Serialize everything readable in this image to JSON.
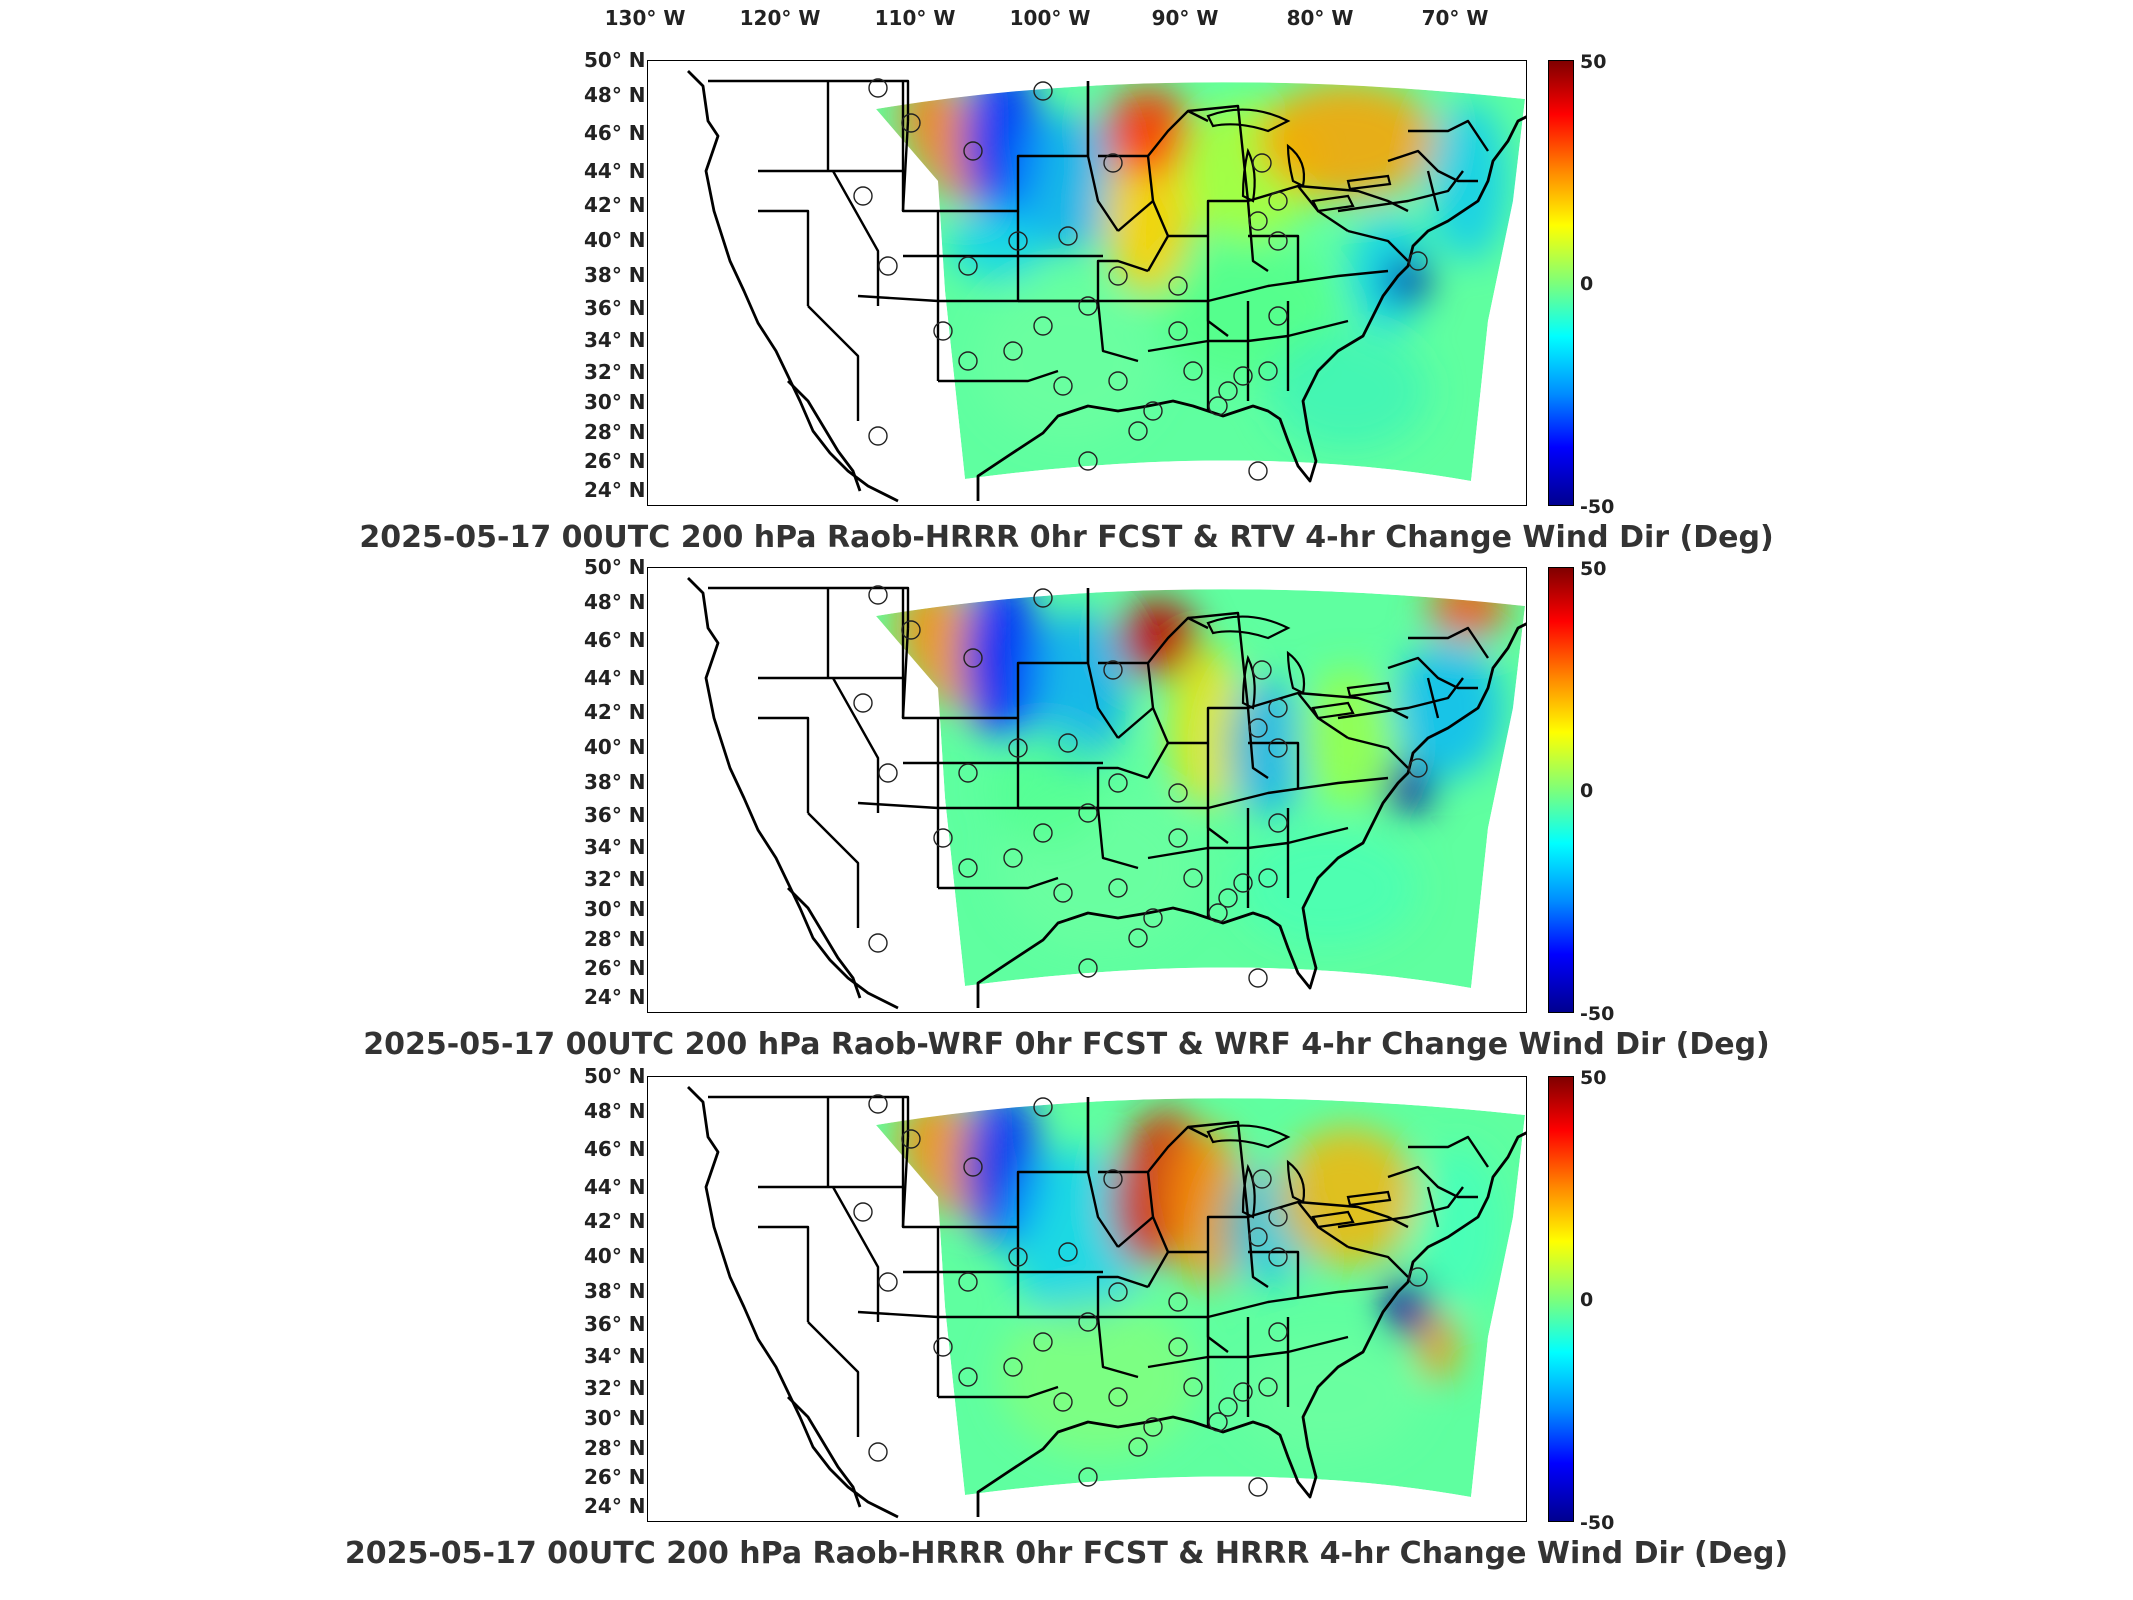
{
  "longitude_labels": [
    "130° W",
    "120° W",
    "110° W",
    "100° W",
    "90° W",
    "80° W",
    "70° W"
  ],
  "latitude_labels": [
    "50° N",
    "48° N",
    "46° N",
    "44° N",
    "42° N",
    "40° N",
    "38° N",
    "36° N",
    "34° N",
    "32° N",
    "30° N",
    "28° N",
    "26° N",
    "24° N"
  ],
  "colorbar": {
    "max_label": "50",
    "mid_label": "0",
    "min_label": "-50",
    "colormap": [
      "#800000",
      "#ff0000",
      "#ff8a00",
      "#ffff00",
      "#7dff7a",
      "#00ffff",
      "#008cff",
      "#0000ff",
      "#00008f"
    ]
  },
  "panels": [
    {
      "title": "2025-05-17 00UTC 200 hPa Raob-HRRR 0hr FCST & RTV 4-hr Change Wind Dir (Deg)"
    },
    {
      "title": "2025-05-17 00UTC 200 hPa Raob-WRF 0hr FCST & WRF 4-hr Change Wind Dir (Deg)"
    },
    {
      "title": "2025-05-17 00UTC 200 hPa Raob-HRRR 0hr FCST & HRRR 4-hr Change Wind Dir (Deg)"
    }
  ]
}
